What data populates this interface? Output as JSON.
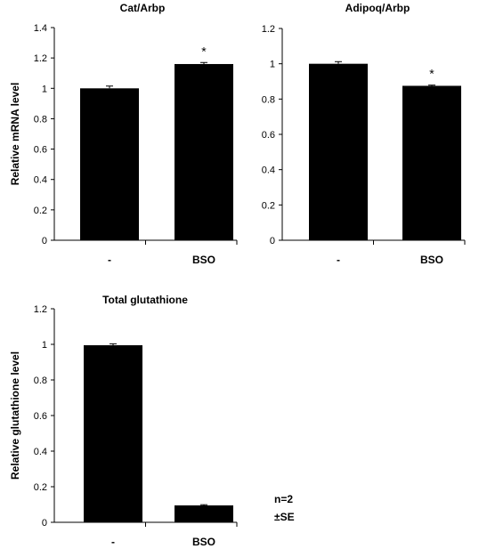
{
  "figure": {
    "note_line1": "n=2",
    "note_line2": "±SE"
  },
  "chart_data": [
    {
      "type": "bar",
      "title": "Cat/Arbp",
      "ylabel": "Relative mRNA level",
      "xlabel": "",
      "categories": [
        "-",
        "BSO"
      ],
      "values": [
        1.0,
        1.16
      ],
      "errors": [
        0.015,
        0.01
      ],
      "significance": [
        "",
        "*"
      ],
      "ylim": [
        0,
        1.4
      ],
      "yticks": [
        "0",
        "0.2",
        "0.4",
        "0.6",
        "0.8",
        "1",
        "1.2",
        "1.4"
      ],
      "grid": false,
      "bar_color": "#000000"
    },
    {
      "type": "bar",
      "title": "Adipoq/Arbp",
      "ylabel": "",
      "xlabel": "",
      "categories": [
        "-",
        "BSO"
      ],
      "values": [
        1.0,
        0.875
      ],
      "errors": [
        0.012,
        0.004
      ],
      "significance": [
        "",
        "*"
      ],
      "ylim": [
        0,
        1.2
      ],
      "yticks": [
        "0",
        "0.2",
        "0.4",
        "0.6",
        "0.8",
        "1",
        "1.2"
      ],
      "grid": false,
      "bar_color": "#000000"
    },
    {
      "type": "bar",
      "title": "Total glutathione",
      "ylabel": "Relative glutathione level",
      "xlabel": "",
      "categories": [
        "-",
        "BSO"
      ],
      "values": [
        0.995,
        0.095
      ],
      "errors": [
        0.008,
        0.004
      ],
      "significance": [
        "",
        ""
      ],
      "ylim": [
        0,
        1.2
      ],
      "yticks": [
        "0",
        "0.2",
        "0.4",
        "0.6",
        "0.8",
        "1",
        "1.2"
      ],
      "grid": false,
      "bar_color": "#000000"
    }
  ]
}
